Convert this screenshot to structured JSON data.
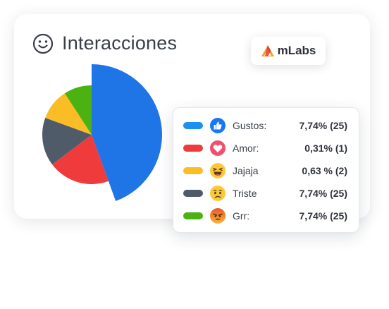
{
  "header": {
    "title": "Interacciones",
    "icon": "smiley-face-icon"
  },
  "brand": {
    "name": "mLabs",
    "logo": "mlabs-logo-icon",
    "logo_colors": [
      "#f4a11b",
      "#e8303a"
    ]
  },
  "chart_data": {
    "type": "pie",
    "slices": [
      {
        "label": "Gustos",
        "value": 7.74,
        "count": 25,
        "color": "#1f74e6",
        "radius": 1.0
      },
      {
        "label": "Amor",
        "value": 0.31,
        "count": 1,
        "color": "#ef3b3b",
        "radius": 0.7
      },
      {
        "label": "Triste",
        "value": 7.74,
        "count": 25,
        "color": "#4f5b69",
        "radius": 0.7
      },
      {
        "label": "Jajaja",
        "value": 0.63,
        "count": 2,
        "color": "#fbbd26",
        "radius": 0.7
      },
      {
        "label": "Grr",
        "value": 7.74,
        "count": 25,
        "color": "#4cb212",
        "radius": 0.7
      }
    ]
  },
  "legend": {
    "items": [
      {
        "label": "Gustos:",
        "value": "7,74% (25)",
        "color": "#1f8ff0",
        "icon": "like-reaction-icon"
      },
      {
        "label": "Amor:",
        "value": "0,31% (1)",
        "color": "#ef3b3b",
        "icon": "love-reaction-icon"
      },
      {
        "label": "Jajaja",
        "value": "0,63 % (2)",
        "color": "#fbbd26",
        "icon": "haha-reaction-icon"
      },
      {
        "label": "Triste",
        "value": "7,74% (25)",
        "color": "#4f5b69",
        "icon": "sad-reaction-icon"
      },
      {
        "label": "Grr:",
        "value": "7,74% (25)",
        "color": "#4cb212",
        "icon": "angry-reaction-icon"
      }
    ]
  }
}
